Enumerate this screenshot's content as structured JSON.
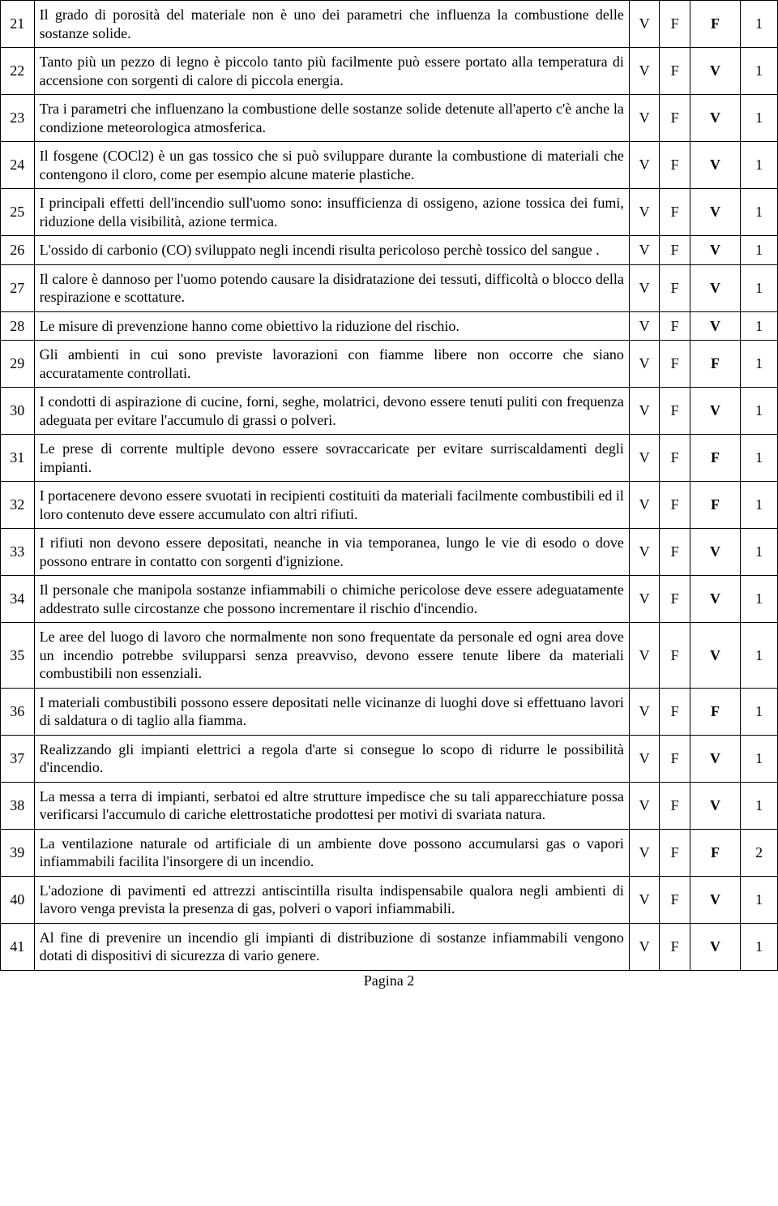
{
  "footer": "Pagina 2",
  "rows": [
    {
      "n": "21",
      "q": "Il grado di porosità del materiale non è uno dei parametri che influenza la combustione delle sostanze solide.",
      "v": "V",
      "f": "F",
      "ans": "F",
      "s": "1"
    },
    {
      "n": "22",
      "q": "Tanto più un pezzo di legno è piccolo tanto più facilmente può essere portato alla temperatura di accensione con sorgenti di calore di piccola energia.",
      "v": "V",
      "f": "F",
      "ans": "V",
      "s": "1"
    },
    {
      "n": "23",
      "q": "Tra i parametri che influenzano la combustione delle sostanze solide detenute all'aperto c'è anche la condizione meteorologica atmosferica.",
      "v": "V",
      "f": "F",
      "ans": "V",
      "s": "1"
    },
    {
      "n": "24",
      "q": "Il fosgene (COCl2) è un gas tossico che si può sviluppare  durante la combustione di materiali che contengono il cloro, come per esempio alcune materie plastiche.",
      "v": "V",
      "f": "F",
      "ans": "V",
      "s": "1"
    },
    {
      "n": "25",
      "q": "I principali effetti dell'incendio sull'uomo sono: insufficienza di ossigeno, azione tossica dei fumi, riduzione della visibilità, azione termica.",
      "v": "V",
      "f": "F",
      "ans": "V",
      "s": "1"
    },
    {
      "n": "26",
      "q": "L'ossido di carbonio (CO) sviluppato negli incendi risulta pericoloso perchè tossico del sangue .",
      "v": "V",
      "f": "F",
      "ans": "V",
      "s": "1"
    },
    {
      "n": "27",
      "q": "Il calore è dannoso per l'uomo potendo causare la disidratazione dei tessuti, difficoltà o blocco della respirazione e scottature.",
      "v": "V",
      "f": "F",
      "ans": "V",
      "s": "1"
    },
    {
      "n": "28",
      "q": "Le misure di prevenzione hanno come obiettivo la riduzione del rischio.",
      "v": "V",
      "f": "F",
      "ans": "V",
      "s": "1"
    },
    {
      "n": "29",
      "q": "Gli ambienti in cui sono previste lavorazioni con fiamme libere non occorre che siano accuratamente controllati.",
      "v": "V",
      "f": "F",
      "ans": "F",
      "s": "1"
    },
    {
      "n": "30",
      "q": "I condotti di aspirazione di cucine, forni, seghe, molatrici, devono essere tenuti puliti con frequenza adeguata per evitare l'accumulo di grassi o polveri.",
      "v": "V",
      "f": "F",
      "ans": "V",
      "s": "1"
    },
    {
      "n": "31",
      "q": "Le prese di corrente multiple devono essere sovraccaricate per evitare surriscaldamenti degli impianti.",
      "v": "V",
      "f": "F",
      "ans": "F",
      "s": "1"
    },
    {
      "n": "32",
      "q": "I portacenere devono essere svuotati in recipienti costituiti da materiali facilmente combustibili ed il loro contenuto deve essere accumulato con altri rifiuti.",
      "v": "V",
      "f": "F",
      "ans": "F",
      "s": "1"
    },
    {
      "n": "33",
      "q": "I rifiuti non devono essere depositati, neanche in via temporanea, lungo le vie di esodo o dove possono entrare in contatto con sorgenti d'ignizione.",
      "v": "V",
      "f": "F",
      "ans": "V",
      "s": "1"
    },
    {
      "n": "34",
      "q": "Il personale che manipola sostanze infiammabili o chimiche pericolose deve essere adeguatamente addestrato sulle circostanze che possono incrementare il rischio d'incendio.",
      "v": "V",
      "f": "F",
      "ans": "V",
      "s": "1"
    },
    {
      "n": "35",
      "q": "Le aree del luogo di lavoro che normalmente non sono frequentate da personale ed ogni area dove un incendio potrebbe svilupparsi senza preavviso, devono essere tenute libere da materiali combustibili non essenziali.",
      "v": "V",
      "f": "F",
      "ans": "V",
      "s": "1"
    },
    {
      "n": "36",
      "q": "I materiali combustibili possono essere depositati nelle vicinanze di luoghi dove si effettuano lavori di saldatura o di taglio alla fiamma.",
      "v": "V",
      "f": "F",
      "ans": "F",
      "s": "1"
    },
    {
      "n": "37",
      "q": "Realizzando gli impianti elettrici a regola d'arte si consegue lo scopo di ridurre le possibilità d'incendio.",
      "v": "V",
      "f": "F",
      "ans": "V",
      "s": "1"
    },
    {
      "n": "38",
      "q": "La messa a terra di impianti, serbatoi ed altre strutture impedisce che su tali apparecchiature possa verificarsi l'accumulo di cariche elettrostatiche prodottesi per motivi di svariata natura.",
      "v": "V",
      "f": "F",
      "ans": "V",
      "s": "1"
    },
    {
      "n": "39",
      "q": "La ventilazione naturale od artificiale di un ambiente dove possono accumularsi gas o vapori infiammabili facilita l'insorgere di un incendio.",
      "v": "V",
      "f": "F",
      "ans": "F",
      "s": "2"
    },
    {
      "n": "40",
      "q": "L'adozione di pavimenti ed attrezzi antiscintilla risulta indispensabile qualora negli ambienti di lavoro venga prevista la presenza di gas, polveri o vapori infiammabili.",
      "v": "V",
      "f": "F",
      "ans": "V",
      "s": "1"
    },
    {
      "n": "41",
      "q": "Al fine di prevenire un incendio gli impianti di distribuzione di sostanze infiammabili vengono dotati di dispositivi di sicurezza di vario genere.",
      "v": "V",
      "f": "F",
      "ans": "V",
      "s": "1"
    }
  ]
}
